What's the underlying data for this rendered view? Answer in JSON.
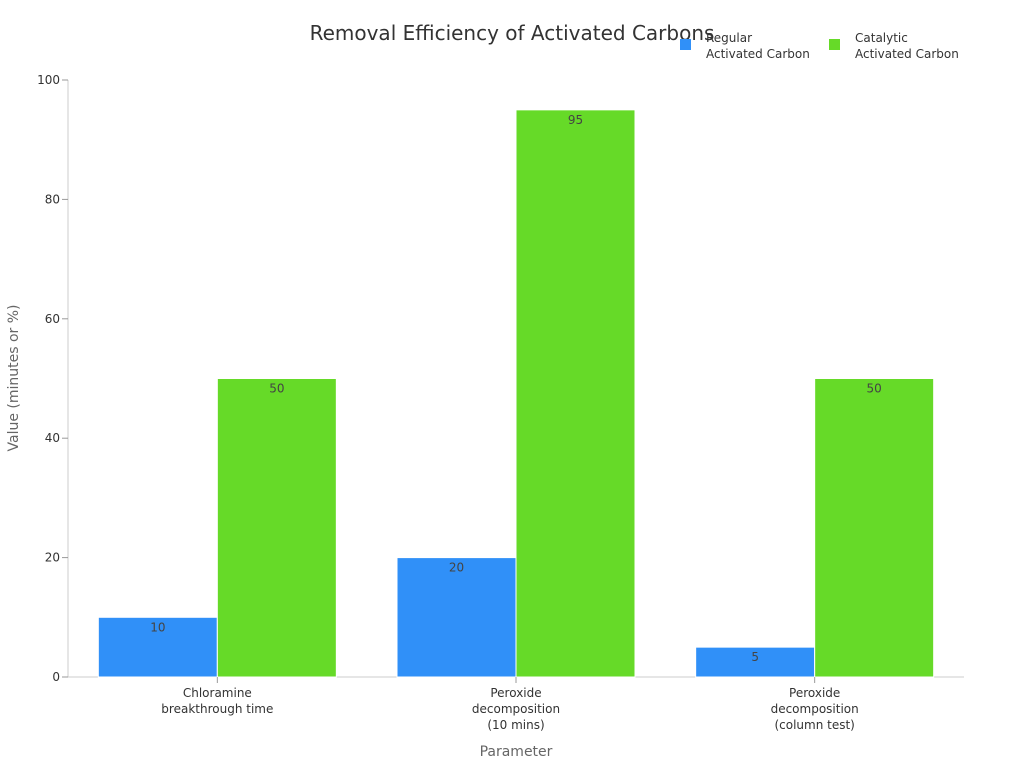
{
  "chart_data": {
    "type": "bar",
    "title": "Removal Efficiency of Activated Carbons",
    "xlabel": "Parameter",
    "ylabel": "Value (minutes or %)",
    "ylim": [
      0,
      100
    ],
    "yticks": [
      0,
      20,
      40,
      60,
      80,
      100
    ],
    "grid": false,
    "legend_position": "top-right",
    "categories": [
      [
        "Chloramine",
        "breakthrough time"
      ],
      [
        "Peroxide",
        "decomposition",
        "(10 mins)"
      ],
      [
        "Peroxide",
        "decomposition",
        "(column test)"
      ]
    ],
    "series": [
      {
        "name": [
          "Regular",
          "Activated Carbon"
        ],
        "color": "#3090F8",
        "values": [
          10,
          20,
          5
        ]
      },
      {
        "name": [
          "Catalytic",
          "Activated Carbon"
        ],
        "color": "#66DA28",
        "values": [
          50,
          95,
          50
        ]
      }
    ]
  }
}
